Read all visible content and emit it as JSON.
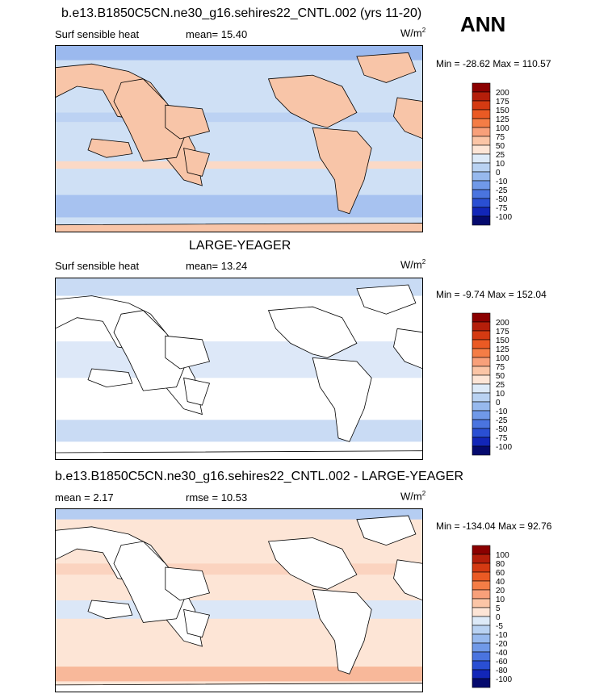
{
  "season": "ANN",
  "units_base": "W/m",
  "units_exp": "2",
  "panels": [
    {
      "title": "b.e13.B1850C5CN.ne30_g16.sehires22_CNTL.002 (yrs 11-20)",
      "variable": "Surf sensible heat",
      "stat1": "mean=  15.40",
      "stat2": "",
      "minmax": "Min = -28.62 Max = 110.57"
    },
    {
      "title": "LARGE-YEAGER",
      "variable": "Surf sensible heat",
      "stat1": "mean=  13.24",
      "stat2": "",
      "minmax": "Min =  -9.74 Max = 152.04"
    },
    {
      "title": "b.e13.B1850C5CN.ne30_g16.sehires22_CNTL.002 - LARGE-YEAGER",
      "variable": "",
      "stat1": "mean =   2.17",
      "stat2": "rmse =  10.53",
      "minmax": "Min = -134.04 Max =  92.76"
    }
  ],
  "chart_data": [
    {
      "type": "heatmap",
      "title": "b.e13.B1850C5CN.ne30_g16.sehires22_CNTL.002 (yrs 11-20)",
      "field": "Surf sensible heat",
      "units": "W/m2",
      "mean": 15.4,
      "min": -28.62,
      "max": 110.57,
      "colorbar": {
        "levels": [
          200,
          175,
          150,
          125,
          100,
          75,
          50,
          25,
          10,
          0,
          -10,
          -25,
          -50,
          -75,
          -100
        ],
        "colors": [
          "#8b0000",
          "#b41e0a",
          "#d43a12",
          "#ea5a24",
          "#f47d46",
          "#f8a07a",
          "#fbc5a6",
          "#fde5d6",
          "#ddeaf8",
          "#b9d2f2",
          "#97b9ee",
          "#7099e8",
          "#4a74df",
          "#2a4fd3",
          "#1226b8",
          "#050a6e"
        ]
      }
    },
    {
      "type": "heatmap",
      "title": "LARGE-YEAGER",
      "field": "Surf sensible heat",
      "units": "W/m2",
      "mean": 13.24,
      "min": -9.74,
      "max": 152.04,
      "colorbar": {
        "levels": [
          200,
          175,
          150,
          125,
          100,
          75,
          50,
          25,
          10,
          0,
          -10,
          -25,
          -50,
          -75,
          -100
        ],
        "colors": [
          "#8b0000",
          "#b41e0a",
          "#d43a12",
          "#ea5a24",
          "#f47d46",
          "#f8a07a",
          "#fbc5a6",
          "#fde5d6",
          "#ddeaf8",
          "#b9d2f2",
          "#97b9ee",
          "#7099e8",
          "#4a74df",
          "#2a4fd3",
          "#1226b8",
          "#050a6e"
        ]
      }
    },
    {
      "type": "heatmap",
      "title": "b.e13.B1850C5CN.ne30_g16.sehires22_CNTL.002 - LARGE-YEAGER",
      "units": "W/m2",
      "mean": 2.17,
      "rmse": 10.53,
      "min": -134.04,
      "max": 92.76,
      "colorbar": {
        "levels": [
          100,
          80,
          60,
          40,
          20,
          10,
          5,
          0,
          -5,
          -10,
          -20,
          -40,
          -60,
          -80,
          -100
        ],
        "colors": [
          "#8b0000",
          "#b41e0a",
          "#d43a12",
          "#ea5a24",
          "#f47d46",
          "#f8a07a",
          "#fbc5a6",
          "#fde5d6",
          "#ddeaf8",
          "#b9d2f2",
          "#97b9ee",
          "#7099e8",
          "#4a74df",
          "#2a4fd3",
          "#1226b8",
          "#050a6e"
        ]
      }
    }
  ]
}
